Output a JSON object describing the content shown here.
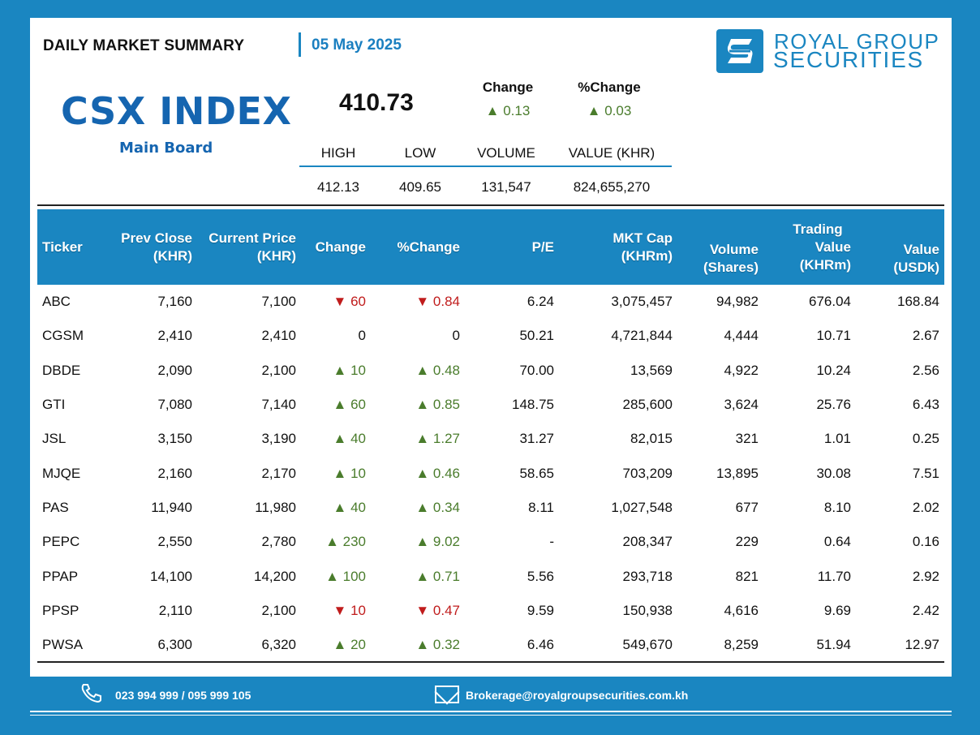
{
  "header": {
    "title": "DAILY MARKET SUMMARY",
    "date": "05 May 2025",
    "brand_line1": "ROYAL GROUP",
    "brand_line2": "SECURITIES"
  },
  "index": {
    "name": "CSX INDEX",
    "board": "Main Board",
    "value": "410.73",
    "change_label": "Change",
    "change_value": "▲ 0.13",
    "pct_change_label": "%Change",
    "pct_change_value": "▲ 0.03",
    "stats": {
      "headers": [
        "HIGH",
        "LOW",
        "VOLUME",
        "VALUE (KHR)"
      ],
      "values": [
        "412.13",
        "409.65",
        "131,547",
        "824,655,270"
      ]
    }
  },
  "table": {
    "headers": {
      "ticker": "Ticker",
      "prev_close": "Prev Close",
      "prev_close_unit": "(KHR)",
      "current_price": "Current Price",
      "current_price_unit": "(KHR)",
      "change": "Change",
      "pct_change": "%Change",
      "pe": "P/E",
      "mkt_cap": "MKT Cap",
      "mkt_cap_unit": "(KHRm)",
      "volume": "Volume",
      "volume_unit": "(Shares)",
      "trading": "Trading",
      "value_khr": "Value",
      "value_khr_unit": "(KHRm)",
      "value_usd": "Value",
      "value_usd_unit": "(USDk)"
    },
    "rows": [
      {
        "ticker": "ABC",
        "prev": "7,160",
        "cur": "7,100",
        "chg": "▼ 60",
        "pct": "▼ 0.84",
        "dir": "down",
        "pe": "6.24",
        "cap": "3,075,457",
        "vol": "94,982",
        "vkhr": "676.04",
        "vusd": "168.84"
      },
      {
        "ticker": "CGSM",
        "prev": "2,410",
        "cur": "2,410",
        "chg": "0",
        "pct": "0",
        "dir": "flat",
        "pe": "50.21",
        "cap": "4,721,844",
        "vol": "4,444",
        "vkhr": "10.71",
        "vusd": "2.67"
      },
      {
        "ticker": "DBDE",
        "prev": "2,090",
        "cur": "2,100",
        "chg": "▲ 10",
        "pct": "▲ 0.48",
        "dir": "up",
        "pe": "70.00",
        "cap": "13,569",
        "vol": "4,922",
        "vkhr": "10.24",
        "vusd": "2.56"
      },
      {
        "ticker": "GTI",
        "prev": "7,080",
        "cur": "7,140",
        "chg": "▲ 60",
        "pct": "▲ 0.85",
        "dir": "up",
        "pe": "148.75",
        "cap": "285,600",
        "vol": "3,624",
        "vkhr": "25.76",
        "vusd": "6.43"
      },
      {
        "ticker": "JSL",
        "prev": "3,150",
        "cur": "3,190",
        "chg": "▲ 40",
        "pct": "▲ 1.27",
        "dir": "up",
        "pe": "31.27",
        "cap": "82,015",
        "vol": "321",
        "vkhr": "1.01",
        "vusd": "0.25"
      },
      {
        "ticker": "MJQE",
        "prev": "2,160",
        "cur": "2,170",
        "chg": "▲ 10",
        "pct": "▲ 0.46",
        "dir": "up",
        "pe": "58.65",
        "cap": "703,209",
        "vol": "13,895",
        "vkhr": "30.08",
        "vusd": "7.51"
      },
      {
        "ticker": "PAS",
        "prev": "11,940",
        "cur": "11,980",
        "chg": "▲ 40",
        "pct": "▲ 0.34",
        "dir": "up",
        "pe": "8.11",
        "cap": "1,027,548",
        "vol": "677",
        "vkhr": "8.10",
        "vusd": "2.02"
      },
      {
        "ticker": "PEPC",
        "prev": "2,550",
        "cur": "2,780",
        "chg": "▲ 230",
        "pct": "▲ 9.02",
        "dir": "up",
        "pe": "-",
        "cap": "208,347",
        "vol": "229",
        "vkhr": "0.64",
        "vusd": "0.16"
      },
      {
        "ticker": "PPAP",
        "prev": "14,100",
        "cur": "14,200",
        "chg": "▲ 100",
        "pct": "▲ 0.71",
        "dir": "up",
        "pe": "5.56",
        "cap": "293,718",
        "vol": "821",
        "vkhr": "11.70",
        "vusd": "2.92"
      },
      {
        "ticker": "PPSP",
        "prev": "2,110",
        "cur": "2,100",
        "chg": "▼ 10",
        "pct": "▼ 0.47",
        "dir": "down",
        "pe": "9.59",
        "cap": "150,938",
        "vol": "4,616",
        "vkhr": "9.69",
        "vusd": "2.42"
      },
      {
        "ticker": "PWSA",
        "prev": "6,300",
        "cur": "6,320",
        "chg": "▲ 20",
        "pct": "▲ 0.32",
        "dir": "up",
        "pe": "6.46",
        "cap": "549,670",
        "vol": "8,259",
        "vkhr": "51.94",
        "vusd": "12.97"
      }
    ]
  },
  "footer": {
    "phone": "023 994 999 / 095 999 105",
    "email": "Brokerage@royalgroupsecurities.com.kh"
  },
  "colors": {
    "brand_blue": "#1a86c1",
    "index_blue": "#1565b0",
    "up_green": "#4a7c2c",
    "down_red": "#c01c1c"
  }
}
